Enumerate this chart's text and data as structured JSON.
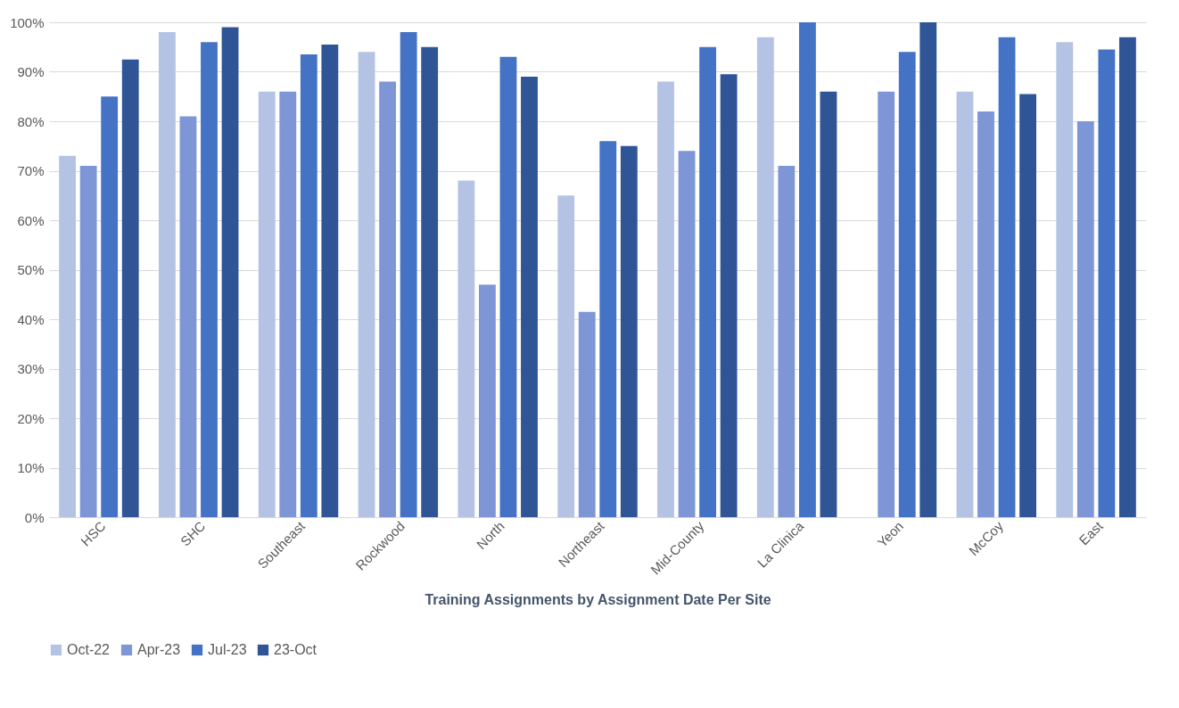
{
  "chart_data": {
    "type": "bar",
    "xlabel": "Training Assignments by Assignment Date Per Site",
    "categories": [
      "HSC",
      "SHC",
      "Southeast",
      "Rockwood",
      "North",
      "Northeast",
      "Mid-County",
      "La Clinica",
      "Yeon",
      "McCoy",
      "East"
    ],
    "series": [
      {
        "name": "Oct-22",
        "color": "#b4c2e4",
        "values": [
          73,
          98,
          86,
          94,
          68,
          65,
          88,
          97,
          null,
          86,
          96
        ]
      },
      {
        "name": "Apr-23",
        "color": "#7f96d6",
        "values": [
          71,
          81,
          86,
          88,
          47,
          41.5,
          74,
          71,
          86,
          82,
          80
        ]
      },
      {
        "name": "Jul-23",
        "color": "#4472c4",
        "values": [
          85,
          96,
          93.5,
          98,
          93,
          76,
          95,
          100,
          94,
          97,
          94.5
        ]
      },
      {
        "name": "23-Oct",
        "color": "#2f5597",
        "values": [
          92.5,
          99,
          95.5,
          95,
          89,
          75,
          89.5,
          86,
          100,
          85.5,
          97
        ]
      }
    ],
    "ylim": [
      0,
      100
    ],
    "yticks": [
      {
        "value": 0,
        "label": "0%"
      },
      {
        "value": 10,
        "label": "10%"
      },
      {
        "value": 20,
        "label": "20%"
      },
      {
        "value": 30,
        "label": "30%"
      },
      {
        "value": 40,
        "label": "40%"
      },
      {
        "value": 50,
        "label": "50%"
      },
      {
        "value": 60,
        "label": "60%"
      },
      {
        "value": 70,
        "label": "70%"
      },
      {
        "value": 80,
        "label": "80%"
      },
      {
        "value": 90,
        "label": "90%"
      },
      {
        "value": 100,
        "label": "100%"
      }
    ],
    "grid": "y",
    "legend": "bottom"
  }
}
